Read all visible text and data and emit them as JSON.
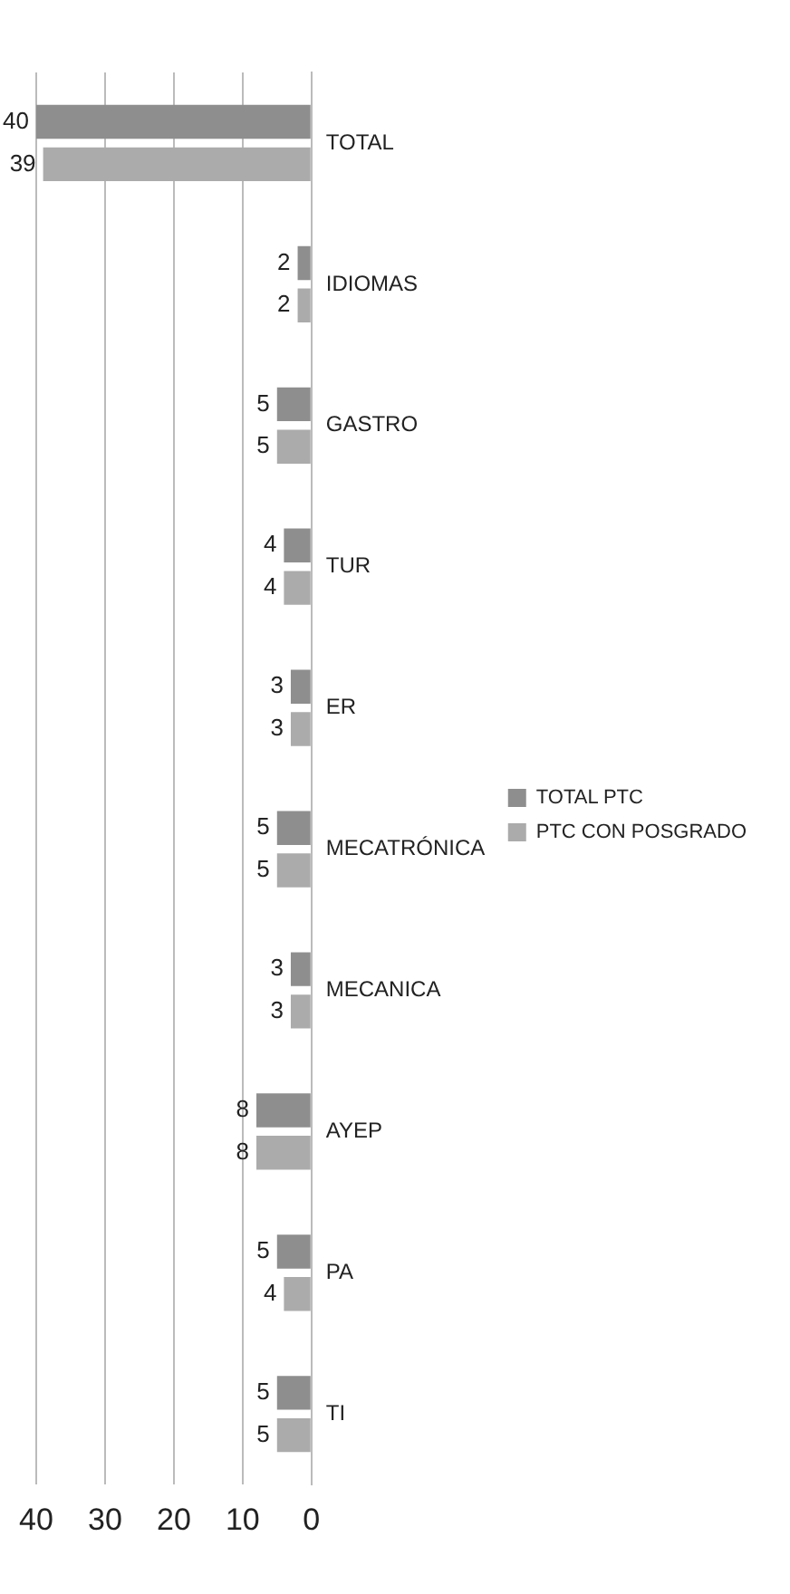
{
  "chart_data": {
    "type": "bar",
    "orientation": "horizontal",
    "categories": [
      "TOTAL",
      "IDIOMAS",
      "GASTRO",
      "TUR",
      "ER",
      "MECATRÓNICA",
      "MECANICA",
      "AYEP",
      "PA",
      "TI"
    ],
    "series": [
      {
        "name": "TOTAL PTC",
        "color": "#8e8e8e",
        "values": [
          40,
          2,
          5,
          4,
          3,
          5,
          3,
          8,
          5,
          5
        ]
      },
      {
        "name": "PTC CON POSGRADO",
        "color": "#ababab",
        "values": [
          39,
          2,
          5,
          4,
          3,
          5,
          3,
          8,
          4,
          5
        ]
      }
    ],
    "xlim": [
      40,
      0
    ],
    "xticks": [
      40,
      30,
      20,
      10,
      0
    ],
    "grid": "x",
    "legend": "right",
    "data_labels": true
  }
}
